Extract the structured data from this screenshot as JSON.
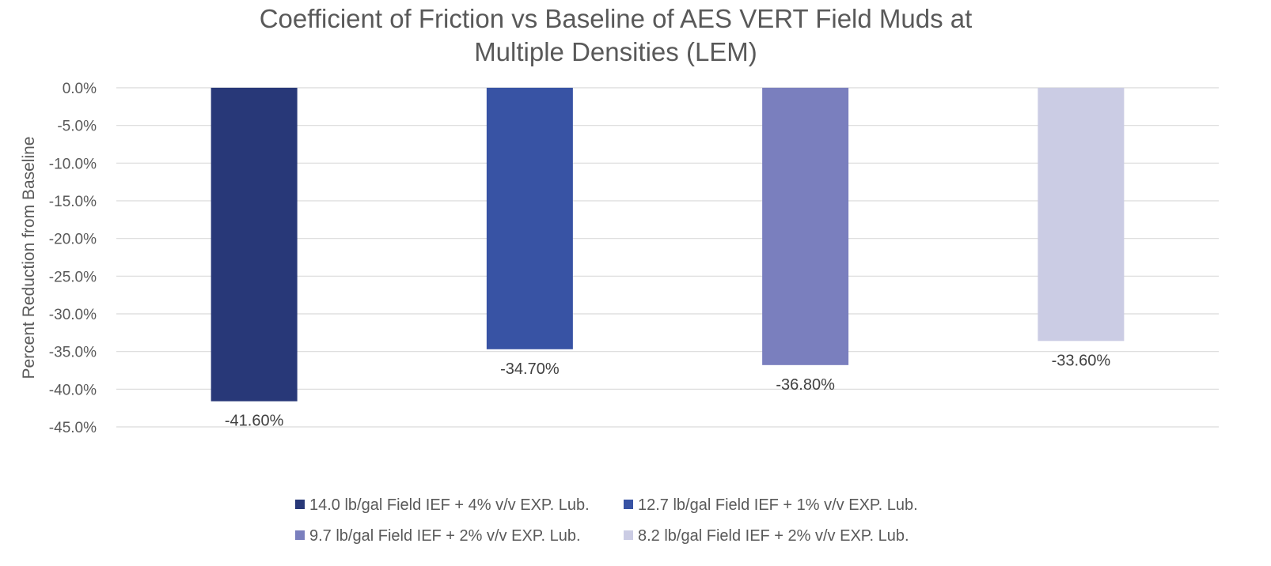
{
  "chart_data": {
    "type": "bar",
    "title_lines": [
      "Coefficient of Friction vs Baseline of AES VERT Field Muds at",
      "Multiple Densities (LEM)"
    ],
    "xlabel": "",
    "ylabel": "Percent Reduction from Baseline",
    "ylim": [
      -45,
      0
    ],
    "y_ticks": [
      "0.0%",
      "-5.0%",
      "-10.0%",
      "-15.0%",
      "-20.0%",
      "-25.0%",
      "-30.0%",
      "-35.0%",
      "-40.0%",
      "-45.0%"
    ],
    "y_tick_values": [
      0,
      -5,
      -10,
      -15,
      -20,
      -25,
      -30,
      -35,
      -40,
      -45
    ],
    "grid": true,
    "legend_position": "bottom",
    "series": [
      {
        "name": "14.0 lb/gal Field IEF + 4% v/v EXP. Lub.",
        "value": -41.6,
        "label": "-41.60%",
        "color": "#283878"
      },
      {
        "name": "12.7 lb/gal Field IEF + 1% v/v EXP. Lub.",
        "value": -34.7,
        "label": "-34.70%",
        "color": "#3853a4"
      },
      {
        "name": "9.7 lb/gal Field IEF + 2% v/v EXP. Lub.",
        "value": -36.8,
        "label": "-36.80%",
        "color": "#7a7fbe"
      },
      {
        "name": "8.2 lb/gal Field IEF + 2% v/v EXP. Lub.",
        "value": -33.6,
        "label": "-33.60%",
        "color": "#cbcce4"
      }
    ]
  }
}
